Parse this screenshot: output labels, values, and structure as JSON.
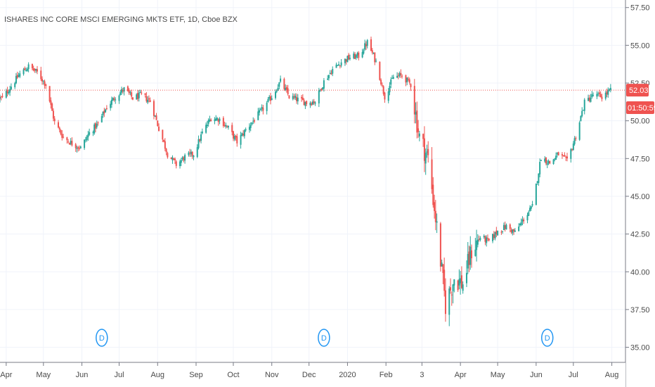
{
  "header": {
    "title": "ISHARES INC CORE MSCI EMERGING MKTS ETF, 1D, Cboe BZX"
  },
  "price_badge": {
    "price": "52.03",
    "countdown": "01:50:59",
    "color": "#ef5350"
  },
  "dividend_marker": {
    "label": "D",
    "color": "#2196f3",
    "months": [
      "Jun",
      "Dec",
      "Jun"
    ]
  },
  "chart_data": {
    "type": "candlestick",
    "title": "ISHARES INC CORE MSCI EMERGING MKTS ETF, 1D, Cboe BZX",
    "ylim": [
      34,
      58
    ],
    "yticks": [
      35.0,
      37.5,
      40.0,
      42.5,
      45.0,
      47.5,
      50.0,
      52.5,
      55.0,
      57.5
    ],
    "ytick_labels": [
      "35.00",
      "37.50",
      "40.00",
      "42.50",
      "45.00",
      "47.50",
      "50.00",
      "52.50",
      "55.00",
      "57.50"
    ],
    "xtick_labels": [
      "Apr",
      "May",
      "Jun",
      "Jul",
      "Aug",
      "Sep",
      "Oct",
      "Nov",
      "Dec",
      "2020",
      "Feb",
      "3",
      "Apr",
      "May",
      "Jun",
      "Jul",
      "Aug"
    ],
    "x_domain": [
      "2019-03-27",
      "2020-08-12"
    ],
    "last_price": 52.03,
    "grid": true,
    "up_color": "#26a69a",
    "down_color": "#ef5350",
    "weekly_close": [
      [
        "2019-03-29",
        51.5
      ],
      [
        "2019-04-05",
        52.3
      ],
      [
        "2019-04-12",
        53.1
      ],
      [
        "2019-04-19",
        53.6
      ],
      [
        "2019-04-26",
        53.2
      ],
      [
        "2019-05-03",
        52.4
      ],
      [
        "2019-05-10",
        49.9
      ],
      [
        "2019-05-17",
        48.9
      ],
      [
        "2019-05-24",
        48.5
      ],
      [
        "2019-05-31",
        48.2
      ],
      [
        "2019-06-07",
        49.2
      ],
      [
        "2019-06-14",
        49.8
      ],
      [
        "2019-06-21",
        50.9
      ],
      [
        "2019-06-28",
        51.6
      ],
      [
        "2019-07-05",
        52.1
      ],
      [
        "2019-07-12",
        51.5
      ],
      [
        "2019-07-19",
        51.7
      ],
      [
        "2019-07-26",
        51.3
      ],
      [
        "2019-08-02",
        49.5
      ],
      [
        "2019-08-09",
        47.8
      ],
      [
        "2019-08-16",
        47.1
      ],
      [
        "2019-08-23",
        47.6
      ],
      [
        "2019-08-30",
        47.8
      ],
      [
        "2019-09-06",
        49.2
      ],
      [
        "2019-09-13",
        50.2
      ],
      [
        "2019-09-20",
        50.1
      ],
      [
        "2019-09-27",
        49.5
      ],
      [
        "2019-10-04",
        48.6
      ],
      [
        "2019-10-11",
        49.4
      ],
      [
        "2019-10-18",
        50.1
      ],
      [
        "2019-10-25",
        50.8
      ],
      [
        "2019-11-01",
        51.6
      ],
      [
        "2019-11-08",
        52.6
      ],
      [
        "2019-11-15",
        51.6
      ],
      [
        "2019-11-22",
        51.4
      ],
      [
        "2019-11-29",
        51.2
      ],
      [
        "2019-12-06",
        51.3
      ],
      [
        "2019-12-13",
        52.6
      ],
      [
        "2019-12-20",
        53.4
      ],
      [
        "2019-12-27",
        53.9
      ],
      [
        "2020-01-03",
        54.2
      ],
      [
        "2020-01-10",
        54.3
      ],
      [
        "2020-01-17",
        55.2
      ],
      [
        "2020-01-24",
        53.9
      ],
      [
        "2020-01-31",
        51.6
      ],
      [
        "2020-02-07",
        52.9
      ],
      [
        "2020-02-14",
        53.0
      ],
      [
        "2020-02-21",
        52.4
      ],
      [
        "2020-02-28",
        48.9
      ],
      [
        "2020-03-06",
        47.5
      ],
      [
        "2020-03-13",
        42.9
      ],
      [
        "2020-03-20",
        37.8
      ],
      [
        "2020-03-27",
        39.6
      ],
      [
        "2020-04-03",
        39.2
      ],
      [
        "2020-04-10",
        41.4
      ],
      [
        "2020-04-17",
        42.3
      ],
      [
        "2020-04-24",
        42.0
      ],
      [
        "2020-05-01",
        42.7
      ],
      [
        "2020-05-08",
        43.0
      ],
      [
        "2020-05-15",
        42.6
      ],
      [
        "2020-05-22",
        43.5
      ],
      [
        "2020-05-29",
        44.3
      ],
      [
        "2020-06-05",
        47.6
      ],
      [
        "2020-06-12",
        47.2
      ],
      [
        "2020-06-19",
        47.8
      ],
      [
        "2020-06-26",
        47.3
      ],
      [
        "2020-07-03",
        49.0
      ],
      [
        "2020-07-10",
        51.2
      ],
      [
        "2020-07-17",
        51.7
      ],
      [
        "2020-07-24",
        51.6
      ],
      [
        "2020-07-31",
        52.0
      ]
    ]
  }
}
